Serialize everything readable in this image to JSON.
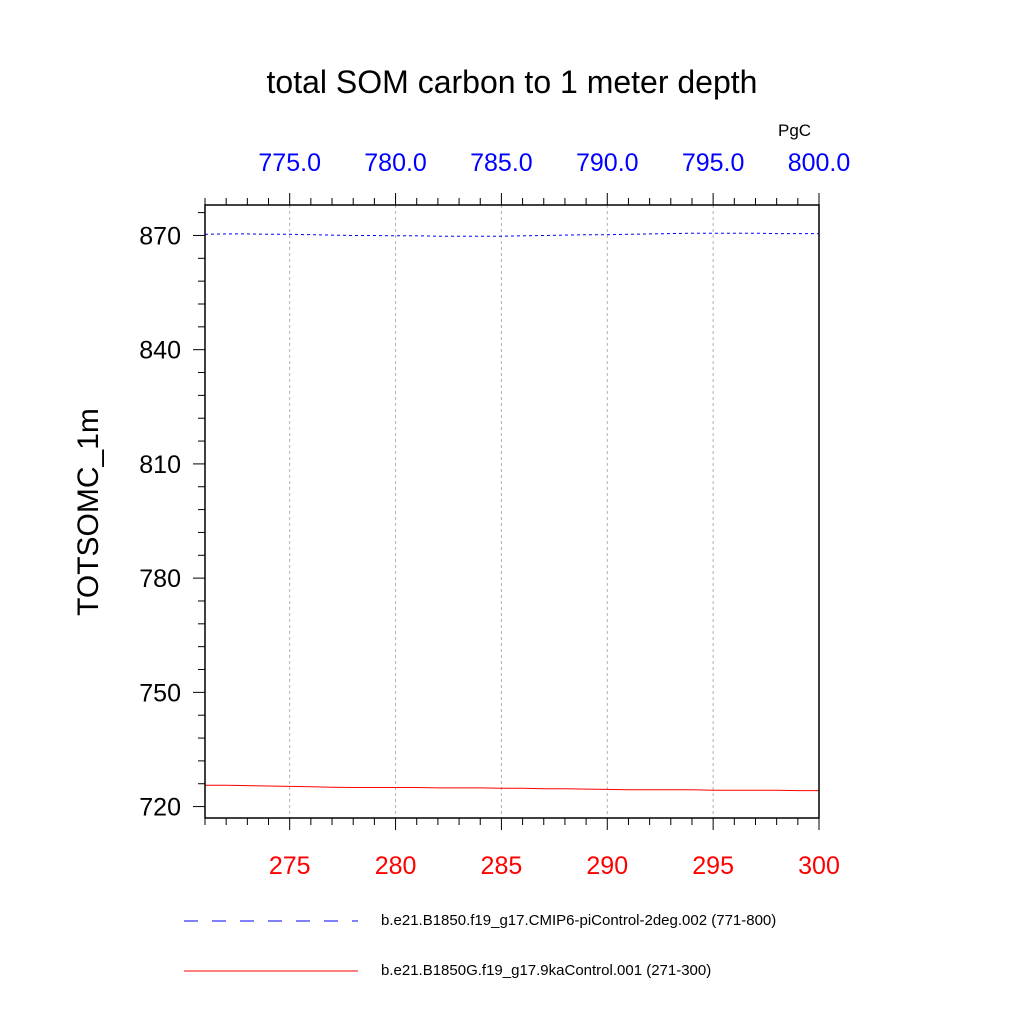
{
  "chart_data": {
    "type": "line",
    "title": "total SOM carbon to 1 meter depth",
    "units_label": "PgC",
    "ylabel": "TOTSOMC_1m",
    "xlabel": "",
    "ylim": [
      717,
      878
    ],
    "y_ticks": [
      720,
      750,
      780,
      810,
      840,
      870
    ],
    "x_bottom": {
      "range": [
        271,
        300
      ],
      "ticks": [
        275,
        280,
        285,
        290,
        295,
        300
      ],
      "tick_labels": [
        "275",
        "280",
        "285",
        "290",
        "295",
        "300"
      ],
      "color": "#ff0000"
    },
    "x_top": {
      "range": [
        771,
        800
      ],
      "ticks": [
        775,
        780,
        785,
        790,
        795,
        800
      ],
      "tick_labels": [
        "775.0",
        "780.0",
        "785.0",
        "790.0",
        "795.0",
        "800.0"
      ],
      "color": "#0000ff"
    },
    "grid": "vertical-dashed",
    "series": [
      {
        "name": "b.e21.B1850.f19_g17.CMIP6-piControl-2deg.002 (771-800)",
        "axis": "top",
        "color": "#0000ff",
        "style": "dashed",
        "x": [
          771,
          772,
          773,
          774,
          775,
          776,
          777,
          778,
          779,
          780,
          781,
          782,
          783,
          784,
          785,
          786,
          787,
          788,
          789,
          790,
          791,
          792,
          793,
          794,
          795,
          796,
          797,
          798,
          799,
          800
        ],
        "values": [
          870.3,
          870.4,
          870.4,
          870.3,
          870.3,
          870.2,
          870.1,
          870.0,
          870.0,
          869.9,
          869.9,
          869.8,
          869.8,
          869.8,
          869.8,
          869.9,
          870.0,
          870.1,
          870.2,
          870.2,
          870.3,
          870.4,
          870.5,
          870.6,
          870.6,
          870.6,
          870.6,
          870.5,
          870.5,
          870.5
        ]
      },
      {
        "name": "b.e21.B1850G.f19_g17.9kaControl.001 (271-300)",
        "axis": "bottom",
        "color": "#ff0000",
        "style": "solid",
        "x": [
          271,
          272,
          273,
          274,
          275,
          276,
          277,
          278,
          279,
          280,
          281,
          282,
          283,
          284,
          285,
          286,
          287,
          288,
          289,
          290,
          291,
          292,
          293,
          294,
          295,
          296,
          297,
          298,
          299,
          300
        ],
        "values": [
          725.6,
          725.6,
          725.5,
          725.4,
          725.3,
          725.2,
          725.1,
          725.0,
          725.0,
          725.0,
          725.0,
          724.9,
          724.9,
          724.9,
          724.8,
          724.8,
          724.7,
          724.7,
          724.6,
          724.5,
          724.4,
          724.4,
          724.4,
          724.4,
          724.3,
          724.3,
          724.3,
          724.3,
          724.2,
          724.2
        ]
      }
    ]
  },
  "legend": [
    {
      "label": "b.e21.B1850.f19_g17.CMIP6-piControl-2deg.002 (771-800)",
      "color": "#0000ff",
      "style": "dashed"
    },
    {
      "label": "b.e21.B1850G.f19_g17.9kaControl.001 (271-300)",
      "color": "#ff0000",
      "style": "solid"
    }
  ]
}
